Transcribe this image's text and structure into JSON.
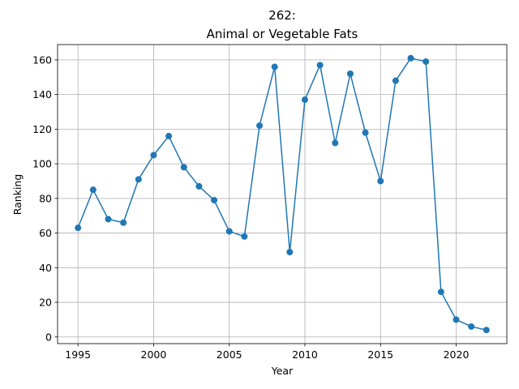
{
  "chart_data": {
    "type": "line",
    "title_line1": "262:",
    "title_line2": "Animal or Vegetable Fats",
    "xlabel": "Year",
    "ylabel": "Ranking",
    "xlim": [
      1993.65,
      2023.35
    ],
    "ylim": [
      -3.85,
      168.85
    ],
    "xticks": [
      1995,
      2000,
      2005,
      2010,
      2015,
      2020
    ],
    "yticks": [
      0,
      20,
      40,
      60,
      80,
      100,
      120,
      140,
      160
    ],
    "grid": true,
    "markers": true,
    "color": "#1f77b4",
    "x": [
      1995,
      1996,
      1997,
      1998,
      1999,
      2000,
      2001,
      2002,
      2003,
      2004,
      2005,
      2006,
      2007,
      2008,
      2009,
      2010,
      2011,
      2012,
      2013,
      2014,
      2015,
      2016,
      2017,
      2018,
      2019,
      2020,
      2021,
      2022
    ],
    "y": [
      63,
      85,
      68,
      66,
      91,
      105,
      116,
      98,
      87,
      79,
      61,
      58,
      122,
      156,
      49,
      137,
      157,
      112,
      152,
      118,
      90,
      148,
      161,
      159,
      26,
      10,
      6,
      4
    ]
  }
}
